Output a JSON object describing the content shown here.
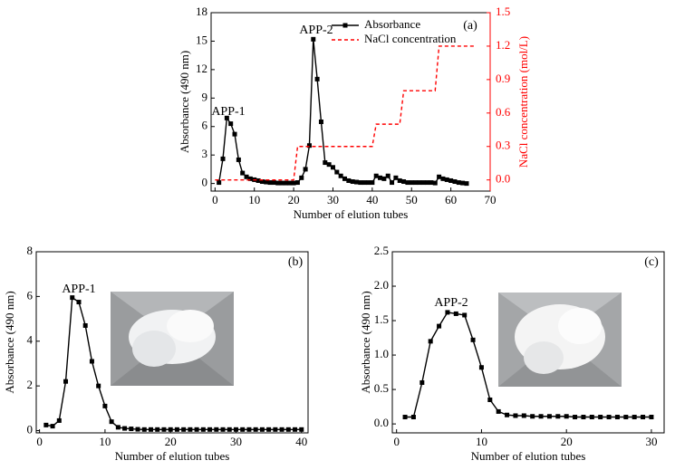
{
  "chart_data": [
    {
      "type": "line",
      "annotations": [
        "APP-1",
        "APP-2",
        "(a)"
      ],
      "x_label": "Number of elution tubes",
      "y_label": "Absorbance (490 nm)",
      "y2_label": "NaCl concentration (mol/L)",
      "x": [
        1,
        2,
        3,
        4,
        5,
        6,
        7,
        8,
        9,
        10,
        11,
        12,
        13,
        14,
        15,
        16,
        17,
        18,
        19,
        20,
        21,
        22,
        23,
        24,
        25,
        26,
        27,
        28,
        29,
        30,
        31,
        32,
        33,
        34,
        35,
        36,
        37,
        38,
        39,
        40,
        41,
        42,
        43,
        44,
        45,
        46,
        47,
        48,
        49,
        50,
        51,
        52,
        53,
        54,
        55,
        56,
        57,
        58,
        59,
        60,
        61,
        62,
        63,
        64
      ],
      "series": [
        {
          "name": "Absorbance",
          "color": "#000000",
          "marker": "square",
          "values": [
            0.1,
            2.6,
            6.9,
            6.3,
            5.2,
            2.5,
            1.1,
            0.7,
            0.5,
            0.4,
            0.3,
            0.2,
            0.15,
            0.1,
            0.1,
            0.05,
            0.05,
            0.05,
            0.05,
            0.05,
            0.1,
            0.6,
            1.5,
            4.0,
            15.2,
            11.0,
            6.5,
            2.2,
            2.0,
            1.7,
            1.2,
            0.8,
            0.5,
            0.3,
            0.2,
            0.15,
            0.1,
            0.1,
            0.1,
            0.1,
            0.8,
            0.6,
            0.5,
            0.8,
            0.1,
            0.6,
            0.3,
            0.2,
            0.1,
            0.1,
            0.1,
            0.1,
            0.1,
            0.1,
            0.1,
            0.05,
            0.7,
            0.5,
            0.4,
            0.3,
            0.2,
            0.1,
            0.05,
            0.0
          ]
        },
        {
          "name": "NaCl concentration",
          "color": "#ff0000",
          "dashed": true,
          "axis": "y2",
          "x": [
            0,
            20,
            21,
            40,
            41,
            47,
            48,
            56,
            57,
            66
          ],
          "values": [
            0,
            0,
            0.3,
            0.3,
            0.5,
            0.5,
            0.8,
            0.8,
            1.2,
            1.2
          ]
        }
      ],
      "xlim": [
        -1,
        70
      ],
      "xticks": [
        0,
        10,
        20,
        30,
        40,
        50,
        60,
        70
      ],
      "ylim": [
        -0.8,
        18
      ],
      "yticks": [
        0,
        3,
        6,
        9,
        12,
        15,
        18
      ],
      "y2lim": [
        -0.1,
        1.5
      ],
      "y2ticks": [
        {
          "value": 0,
          "label": "0.0"
        },
        0.3,
        0.6,
        0.9,
        1.2,
        1.5
      ],
      "legend": "upper right"
    },
    {
      "type": "line",
      "annotations": [
        "APP-1",
        "(b)"
      ],
      "x_label": "Number of elution tubes",
      "y_label": "Absorbance (490 nm)",
      "x": [
        1,
        2,
        3,
        4,
        5,
        6,
        7,
        8,
        9,
        10,
        11,
        12,
        13,
        14,
        15,
        16,
        17,
        18,
        19,
        20,
        21,
        22,
        23,
        24,
        25,
        26,
        27,
        28,
        29,
        30,
        31,
        32,
        33,
        34,
        35,
        36,
        37,
        38,
        39,
        40
      ],
      "series": [
        {
          "color": "#000000",
          "marker": "square",
          "values": [
            0.25,
            0.2,
            0.45,
            2.2,
            5.95,
            5.75,
            4.7,
            3.1,
            2.0,
            1.1,
            0.4,
            0.15,
            0.1,
            0.08,
            0.06,
            0.05,
            0.05,
            0.05,
            0.05,
            0.05,
            0.05,
            0.05,
            0.05,
            0.05,
            0.05,
            0.05,
            0.05,
            0.05,
            0.05,
            0.05,
            0.05,
            0.05,
            0.05,
            0.05,
            0.05,
            0.05,
            0.05,
            0.05,
            0.05,
            0.05
          ]
        }
      ],
      "xlim": [
        -0.5,
        41
      ],
      "xticks": [
        0,
        10,
        20,
        30,
        40
      ],
      "ylim": [
        -0.1,
        8
      ],
      "yticks": [
        0,
        2,
        4,
        6,
        8
      ]
    },
    {
      "type": "line",
      "annotations": [
        "APP-2",
        "(c)"
      ],
      "x_label": "Number of elution tubes",
      "y_label": "Absorbance (490 nm)",
      "x": [
        1,
        2,
        3,
        4,
        5,
        6,
        7,
        8,
        9,
        10,
        11,
        12,
        13,
        14,
        15,
        16,
        17,
        18,
        19,
        20,
        21,
        22,
        23,
        24,
        25,
        26,
        27,
        28,
        29,
        30
      ],
      "series": [
        {
          "color": "#000000",
          "marker": "square",
          "values": [
            0.1,
            0.1,
            0.6,
            1.2,
            1.42,
            1.62,
            1.6,
            1.58,
            1.22,
            0.82,
            0.35,
            0.18,
            0.13,
            0.12,
            0.12,
            0.11,
            0.11,
            0.11,
            0.11,
            0.11,
            0.1,
            0.1,
            0.1,
            0.1,
            0.1,
            0.1,
            0.1,
            0.1,
            0.1,
            0.1
          ]
        }
      ],
      "xlim": [
        -0.5,
        31.5
      ],
      "xticks": [
        0,
        10,
        20,
        30
      ],
      "ylim": [
        -0.13,
        2.5
      ],
      "yticks": [
        {
          "value": 0,
          "label": "0.0"
        },
        0.5,
        {
          "value": 1,
          "label": "1.0"
        },
        1.5,
        {
          "value": 2,
          "label": "2.0"
        },
        2.5
      ]
    }
  ]
}
